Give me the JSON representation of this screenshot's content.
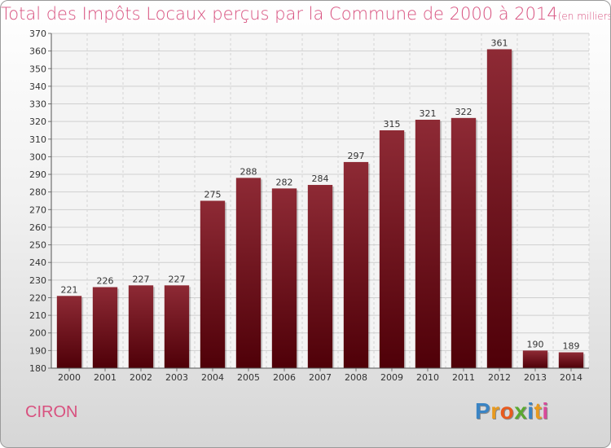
{
  "title": "Total des Impôts Locaux perçus par la Commune de 2000 à 2014",
  "subtitle": "(en milliers d'€)",
  "commune": "CIRON",
  "logo": {
    "text": "Proxiti",
    "letters": [
      "P",
      "r",
      "o",
      "x",
      "i",
      "t",
      "i"
    ],
    "colors": [
      "#3a84c4",
      "#e89a1e",
      "#e85a1e",
      "#5aa830",
      "#3a84c4",
      "#e89a1e",
      "#d84a9a"
    ]
  },
  "chart_data": {
    "type": "bar",
    "title": "Total des Impôts Locaux perçus par la Commune de 2000 à 2014",
    "xlabel": "",
    "ylabel": "",
    "categories": [
      "2000",
      "2001",
      "2002",
      "2003",
      "2004",
      "2005",
      "2006",
      "2007",
      "2008",
      "2009",
      "2010",
      "2011",
      "2012",
      "2013",
      "2014"
    ],
    "values": [
      221,
      226,
      227,
      227,
      275,
      288,
      282,
      284,
      297,
      315,
      321,
      322,
      361,
      190,
      189
    ],
    "ylim": [
      180,
      370
    ],
    "yticks": [
      180,
      190,
      200,
      210,
      220,
      230,
      240,
      250,
      260,
      270,
      280,
      290,
      300,
      310,
      320,
      330,
      340,
      350,
      360,
      370
    ],
    "grid": true,
    "bar_color": "#7a1c28"
  }
}
